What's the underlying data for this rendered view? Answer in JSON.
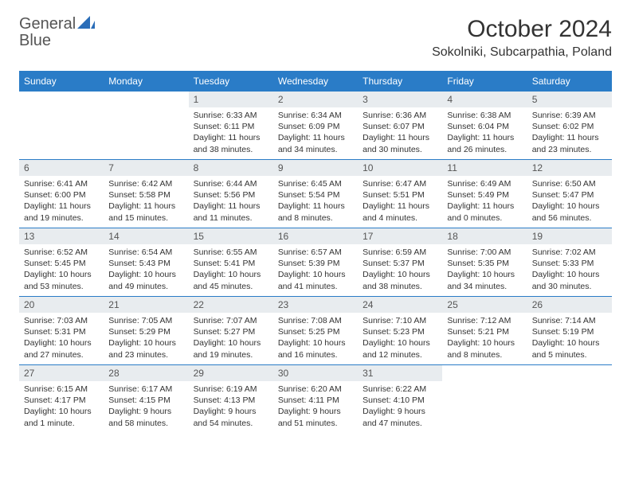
{
  "logo": {
    "word1": "General",
    "word2": "Blue"
  },
  "title": "October 2024",
  "location": "Sokolniki, Subcarpathia, Poland",
  "colors": {
    "header_bg": "#2a7cc7",
    "header_fg": "#ffffff",
    "daynum_bg": "#e8ecef",
    "border": "#2a7cc7",
    "logo_blue": "#2a6db8"
  },
  "weekdays": [
    "Sunday",
    "Monday",
    "Tuesday",
    "Wednesday",
    "Thursday",
    "Friday",
    "Saturday"
  ],
  "weeks": [
    [
      null,
      null,
      {
        "n": "1",
        "sr": "6:33 AM",
        "ss": "6:11 PM",
        "dl": "11 hours and 38 minutes."
      },
      {
        "n": "2",
        "sr": "6:34 AM",
        "ss": "6:09 PM",
        "dl": "11 hours and 34 minutes."
      },
      {
        "n": "3",
        "sr": "6:36 AM",
        "ss": "6:07 PM",
        "dl": "11 hours and 30 minutes."
      },
      {
        "n": "4",
        "sr": "6:38 AM",
        "ss": "6:04 PM",
        "dl": "11 hours and 26 minutes."
      },
      {
        "n": "5",
        "sr": "6:39 AM",
        "ss": "6:02 PM",
        "dl": "11 hours and 23 minutes."
      }
    ],
    [
      {
        "n": "6",
        "sr": "6:41 AM",
        "ss": "6:00 PM",
        "dl": "11 hours and 19 minutes."
      },
      {
        "n": "7",
        "sr": "6:42 AM",
        "ss": "5:58 PM",
        "dl": "11 hours and 15 minutes."
      },
      {
        "n": "8",
        "sr": "6:44 AM",
        "ss": "5:56 PM",
        "dl": "11 hours and 11 minutes."
      },
      {
        "n": "9",
        "sr": "6:45 AM",
        "ss": "5:54 PM",
        "dl": "11 hours and 8 minutes."
      },
      {
        "n": "10",
        "sr": "6:47 AM",
        "ss": "5:51 PM",
        "dl": "11 hours and 4 minutes."
      },
      {
        "n": "11",
        "sr": "6:49 AM",
        "ss": "5:49 PM",
        "dl": "11 hours and 0 minutes."
      },
      {
        "n": "12",
        "sr": "6:50 AM",
        "ss": "5:47 PM",
        "dl": "10 hours and 56 minutes."
      }
    ],
    [
      {
        "n": "13",
        "sr": "6:52 AM",
        "ss": "5:45 PM",
        "dl": "10 hours and 53 minutes."
      },
      {
        "n": "14",
        "sr": "6:54 AM",
        "ss": "5:43 PM",
        "dl": "10 hours and 49 minutes."
      },
      {
        "n": "15",
        "sr": "6:55 AM",
        "ss": "5:41 PM",
        "dl": "10 hours and 45 minutes."
      },
      {
        "n": "16",
        "sr": "6:57 AM",
        "ss": "5:39 PM",
        "dl": "10 hours and 41 minutes."
      },
      {
        "n": "17",
        "sr": "6:59 AM",
        "ss": "5:37 PM",
        "dl": "10 hours and 38 minutes."
      },
      {
        "n": "18",
        "sr": "7:00 AM",
        "ss": "5:35 PM",
        "dl": "10 hours and 34 minutes."
      },
      {
        "n": "19",
        "sr": "7:02 AM",
        "ss": "5:33 PM",
        "dl": "10 hours and 30 minutes."
      }
    ],
    [
      {
        "n": "20",
        "sr": "7:03 AM",
        "ss": "5:31 PM",
        "dl": "10 hours and 27 minutes."
      },
      {
        "n": "21",
        "sr": "7:05 AM",
        "ss": "5:29 PM",
        "dl": "10 hours and 23 minutes."
      },
      {
        "n": "22",
        "sr": "7:07 AM",
        "ss": "5:27 PM",
        "dl": "10 hours and 19 minutes."
      },
      {
        "n": "23",
        "sr": "7:08 AM",
        "ss": "5:25 PM",
        "dl": "10 hours and 16 minutes."
      },
      {
        "n": "24",
        "sr": "7:10 AM",
        "ss": "5:23 PM",
        "dl": "10 hours and 12 minutes."
      },
      {
        "n": "25",
        "sr": "7:12 AM",
        "ss": "5:21 PM",
        "dl": "10 hours and 8 minutes."
      },
      {
        "n": "26",
        "sr": "7:14 AM",
        "ss": "5:19 PM",
        "dl": "10 hours and 5 minutes."
      }
    ],
    [
      {
        "n": "27",
        "sr": "6:15 AM",
        "ss": "4:17 PM",
        "dl": "10 hours and 1 minute."
      },
      {
        "n": "28",
        "sr": "6:17 AM",
        "ss": "4:15 PM",
        "dl": "9 hours and 58 minutes."
      },
      {
        "n": "29",
        "sr": "6:19 AM",
        "ss": "4:13 PM",
        "dl": "9 hours and 54 minutes."
      },
      {
        "n": "30",
        "sr": "6:20 AM",
        "ss": "4:11 PM",
        "dl": "9 hours and 51 minutes."
      },
      {
        "n": "31",
        "sr": "6:22 AM",
        "ss": "4:10 PM",
        "dl": "9 hours and 47 minutes."
      },
      null,
      null
    ]
  ],
  "labels": {
    "sunrise": "Sunrise:",
    "sunset": "Sunset:",
    "daylight": "Daylight:"
  }
}
